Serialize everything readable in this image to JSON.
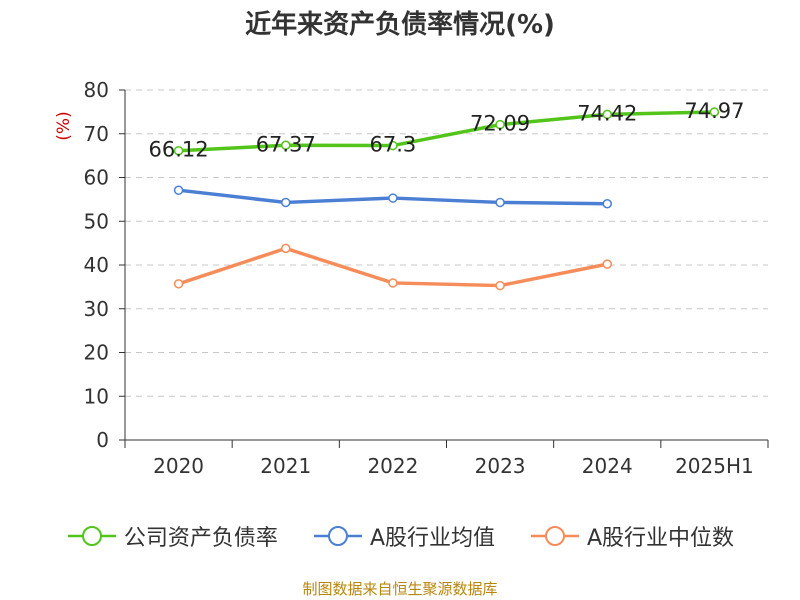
{
  "chart_data": {
    "type": "line",
    "title": "近年来资产负债率情况(%)",
    "ylabel": "(%)",
    "ylim": [
      0,
      80
    ],
    "yticks": [
      "0",
      "10",
      "20",
      "30",
      "40",
      "50",
      "60",
      "70",
      "80"
    ],
    "categories": [
      "2020",
      "2021",
      "2022",
      "2023",
      "2024",
      "2025H1"
    ],
    "grid": true,
    "legend_position": "bottom",
    "series": [
      {
        "name": "公司资产负债率",
        "color": "#52c41a",
        "values": [
          66.12,
          67.37,
          67.3,
          72.09,
          74.42,
          74.97
        ],
        "labels": [
          "66.12",
          "67.37",
          "67.3",
          "72.09",
          "74.42",
          "74.97"
        ]
      },
      {
        "name": "A股行业均值",
        "color": "#4a7fd4",
        "values": [
          57.1,
          54.3,
          55.3,
          54.3,
          54.0,
          null
        ]
      },
      {
        "name": "A股行业中位数",
        "color": "#f58c5a",
        "values": [
          35.7,
          43.8,
          35.9,
          35.3,
          40.2,
          null
        ]
      }
    ]
  },
  "source": "制图数据来自恒生聚源数据库"
}
